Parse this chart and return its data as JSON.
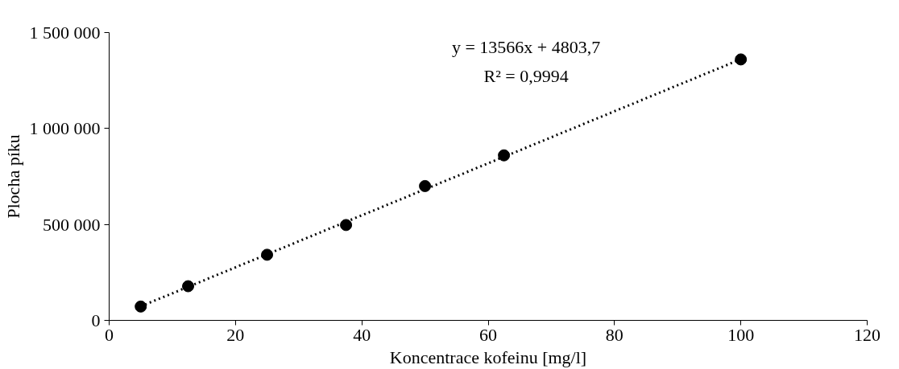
{
  "chart_data": {
    "type": "scatter",
    "xlabel": "Koncentrace kofeinu [mg/l]",
    "ylabel": "Plocha píku",
    "marker": "circle",
    "grid": false,
    "xlim": [
      0,
      120
    ],
    "xticks": [
      0,
      20,
      40,
      60,
      80,
      100,
      120
    ],
    "ylim": [
      0,
      1500000
    ],
    "yticks": [
      0,
      {
        "value": 500000,
        "label": "500 000"
      },
      {
        "value": 1000000,
        "label": "1 000 000"
      },
      {
        "value": 1500000,
        "label": "1 500 000"
      }
    ],
    "series": [
      {
        "color": "#000000",
        "x": [
          5,
          12.5,
          25,
          37.5,
          50,
          62.5,
          100
        ],
        "values": [
          72000,
          178000,
          342000,
          497000,
          700000,
          860000,
          1360000
        ]
      },
      {
        "type": "line",
        "color": "#000000",
        "line_style": "dotted",
        "marker": "none",
        "x": [
          5,
          100
        ],
        "values": [
          73000,
          1361000
        ]
      }
    ],
    "annotations": [
      "y = 13566x + 4803,7",
      "R² = 0,9994"
    ]
  }
}
